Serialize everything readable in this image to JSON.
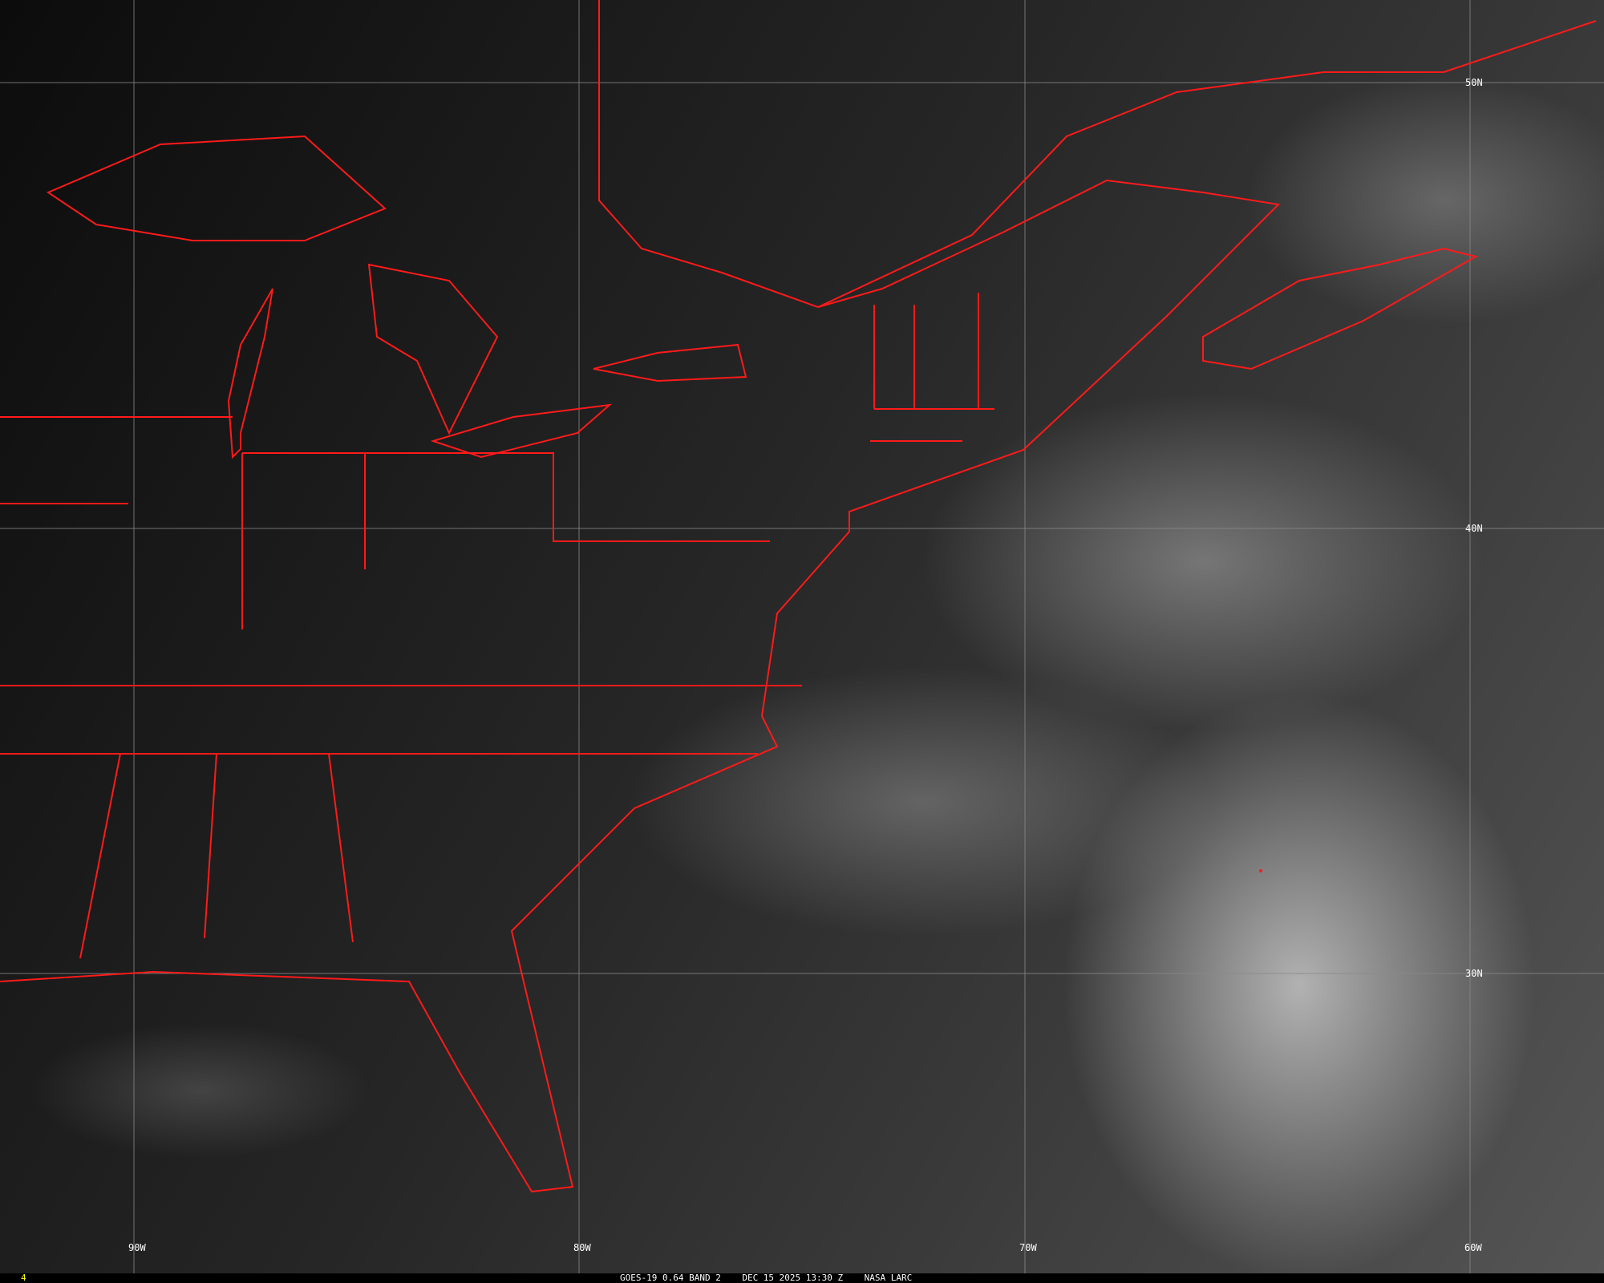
{
  "caption": "GOES-19 0.64 BAND 2    DEC 15 2025 13:30 Z    NASA LARC",
  "frame_number": "4",
  "grid": {
    "longitude_labels": [
      "90W",
      "80W",
      "70W",
      "60W"
    ],
    "latitude_labels": [
      "50N",
      "40N",
      "30N"
    ]
  },
  "colors": {
    "borders": "#ff0000",
    "grid": "#8a8a8a",
    "frame_number": "#ffff00"
  }
}
